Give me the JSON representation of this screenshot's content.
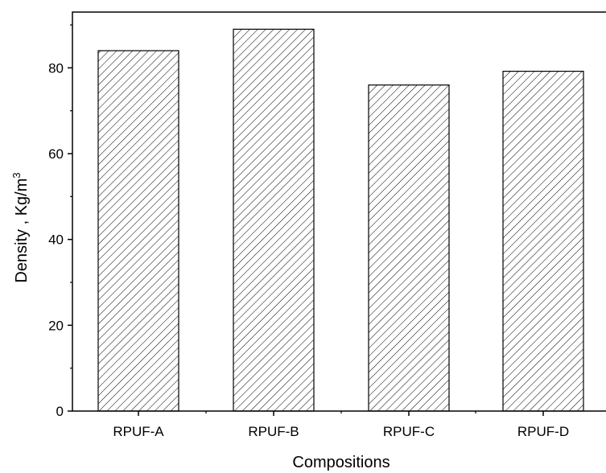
{
  "chart_data": {
    "type": "bar",
    "title": "",
    "xlabel": "Compositions",
    "ylabel_main": "Density , Kg/m",
    "ylabel_sup": "3",
    "categories": [
      "RPUF-A",
      "RPUF-B",
      "RPUF-C",
      "RPUF-D"
    ],
    "values": [
      84,
      89,
      76,
      79.2
    ],
    "ylim": [
      0,
      93
    ],
    "yticks": [
      0,
      20,
      40,
      60,
      80
    ],
    "grid": false,
    "bar_fill": "hatched diagonal",
    "colors": {
      "axis": "#000000",
      "bar_edge": "#000000",
      "hatch": "#000000",
      "background": "#ffffff"
    }
  }
}
